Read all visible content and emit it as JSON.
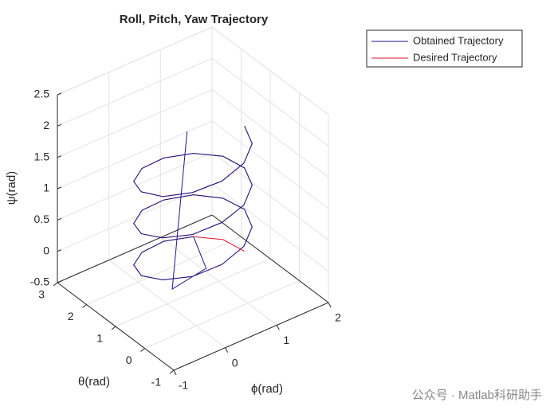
{
  "chart_data": {
    "type": "line3d",
    "title": "Roll, Pitch, Yaw Trajectory",
    "xlabel": "ϕ(rad)",
    "ylabel": "θ(rad)",
    "zlabel": "ψ(rad)",
    "xlim": [
      -1,
      2
    ],
    "ylim": [
      -1,
      3
    ],
    "zlim": [
      -0.5,
      2.5
    ],
    "xticks": [
      -1,
      0,
      1,
      2
    ],
    "yticks": [
      -1,
      0,
      1,
      2,
      3
    ],
    "zticks": [
      -0.5,
      0,
      0.5,
      1,
      1.5,
      2,
      2.5
    ],
    "grid": true,
    "legend": "outside-top-right",
    "watermark": "公众号 · Matlab科研助手",
    "series": [
      {
        "name": "Desired Trajectory",
        "color": "#e0102a",
        "x": [
          1.5,
          1.366,
          1,
          0.5,
          0,
          -0.366,
          -0.5,
          -0.366,
          0,
          0.5,
          1,
          1.366,
          1.5,
          1.366,
          1,
          0.5,
          0,
          -0.366,
          -0.5,
          -0.366,
          0,
          0.5,
          1,
          1.366,
          1.5,
          1.366,
          1,
          0.5,
          0,
          -0.366,
          -0.5,
          -0.366,
          0,
          0.5,
          1,
          1.366,
          1.5
        ],
        "y": [
          1,
          1.5,
          1.866,
          2,
          1.866,
          1.5,
          1,
          0.5,
          0.134,
          0,
          0.134,
          0.5,
          1,
          1.5,
          1.866,
          2,
          1.866,
          1.5,
          1,
          0.5,
          0.134,
          0,
          0.134,
          0.5,
          1,
          1.5,
          1.866,
          2,
          1.866,
          1.5,
          1,
          0.5,
          0.134,
          0,
          0.134,
          0.5,
          1
        ],
        "z": [
          -0.2,
          -0.14,
          -0.09,
          -0.03,
          0.02,
          0.08,
          0.13,
          0.19,
          0.24,
          0.3,
          0.36,
          0.41,
          0.47,
          0.52,
          0.58,
          0.63,
          0.69,
          0.74,
          0.8,
          0.86,
          0.91,
          0.97,
          1.02,
          1.08,
          1.13,
          1.19,
          1.24,
          1.3,
          1.36,
          1.41,
          1.47,
          1.52,
          1.58,
          1.63,
          1.69,
          1.74,
          1.8
        ]
      },
      {
        "name": "Obtained Trajectory",
        "color": "#1a1a8c",
        "x": [
          0.5,
          0.1,
          0.7,
          1,
          0.5,
          0,
          -0.366,
          -0.5,
          -0.366,
          0,
          0.5,
          1,
          1.366,
          1.5,
          1.366,
          1,
          0.5,
          0,
          -0.366,
          -0.5,
          -0.366,
          0,
          0.5,
          1,
          1.366,
          1.5,
          1.366,
          1,
          0.5,
          0,
          -0.366,
          -0.5,
          -0.366,
          0,
          0.5,
          1,
          1.366,
          1.5
        ],
        "y": [
          1.2,
          1.0,
          0.9,
          1.866,
          2,
          1.866,
          1.5,
          1,
          0.5,
          0.134,
          0,
          0.134,
          0.5,
          1,
          1.5,
          1.866,
          2,
          1.866,
          1.5,
          1,
          0.5,
          0.134,
          0,
          0.134,
          0.5,
          1,
          1.5,
          1.866,
          2,
          1.866,
          1.5,
          1,
          0.5,
          0.134,
          0,
          0.134,
          0.5,
          1
        ],
        "z": [
          2.0,
          -0.3,
          -0.15,
          -0.09,
          -0.03,
          0.02,
          0.08,
          0.13,
          0.19,
          0.24,
          0.3,
          0.36,
          0.41,
          0.47,
          0.52,
          0.58,
          0.63,
          0.69,
          0.74,
          0.8,
          0.86,
          0.91,
          0.97,
          1.02,
          1.08,
          1.13,
          1.19,
          1.24,
          1.3,
          1.36,
          1.41,
          1.47,
          1.52,
          1.58,
          1.63,
          1.69,
          1.74,
          1.8
        ]
      }
    ]
  }
}
